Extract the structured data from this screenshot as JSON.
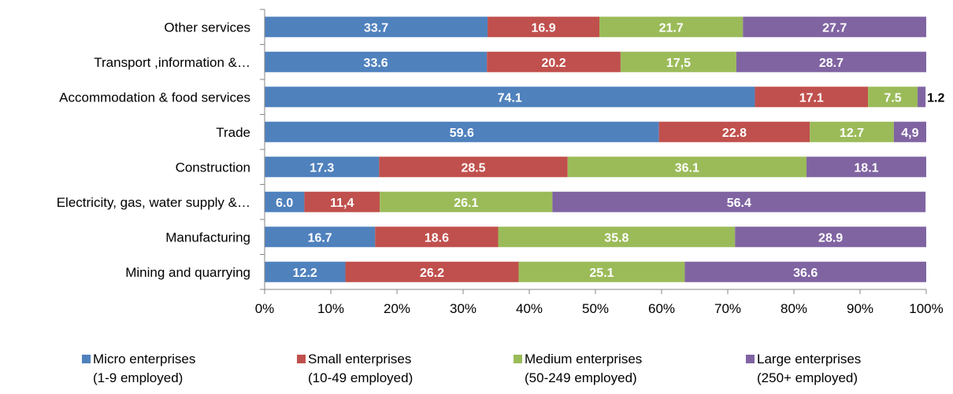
{
  "chart_data": {
    "type": "bar",
    "orientation": "horizontal",
    "stacked": "percent",
    "categories": [
      "Other services",
      "Transport ,information &…",
      "Accommodation & food services",
      "Trade",
      "Construction",
      "Electricity, gas, water supply &…",
      "Manufacturing",
      "Mining and quarrying"
    ],
    "series": [
      {
        "name": "Micro enterprises (1-9 employed)",
        "legend_lines": [
          "Micro enterprises",
          "(1-9 employed)"
        ],
        "color": "#4f81bd",
        "values": [
          33.7,
          33.6,
          74.1,
          59.6,
          17.3,
          6.0,
          16.7,
          12.2
        ],
        "labels": [
          "33.7",
          "33.6",
          "74.1",
          "59.6",
          "17.3",
          "6.0",
          "16.7",
          "12.2"
        ]
      },
      {
        "name": "Small enterprises (10-49 employed)",
        "legend_lines": [
          "Small enterprises",
          "(10-49 employed)"
        ],
        "color": "#c0504d",
        "values": [
          16.9,
          20.2,
          17.1,
          22.8,
          28.5,
          11.4,
          18.6,
          26.2
        ],
        "labels": [
          "16.9",
          "20.2",
          "17.1",
          "22.8",
          "28.5",
          "11,4",
          "18.6",
          "26.2"
        ]
      },
      {
        "name": "Medium enterprises (50-249 employed)",
        "legend_lines": [
          "Medium enterprises",
          "(50-249 employed)"
        ],
        "color": "#9bbb59",
        "values": [
          21.7,
          17.5,
          7.5,
          12.7,
          36.1,
          26.1,
          35.8,
          25.1
        ],
        "labels": [
          "21.7",
          "17,5",
          "7.5",
          "12.7",
          "36.1",
          "26.1",
          "35.8",
          "25.1"
        ]
      },
      {
        "name": "Large enterprises (250+ employed)",
        "legend_lines": [
          "Large enterprises",
          "(250+ employed)"
        ],
        "color": "#8064a2",
        "values": [
          27.7,
          28.7,
          1.2,
          4.9,
          18.1,
          56.4,
          28.9,
          36.6
        ],
        "labels": [
          "27.7",
          "28.7",
          "1.2",
          "4,9",
          "18.1",
          "56.4",
          "28.9",
          "36.6"
        ]
      }
    ],
    "x_ticks": [
      "0%",
      "10%",
      "20%",
      "30%",
      "40%",
      "50%",
      "60%",
      "70%",
      "80%",
      "90%",
      "100%"
    ],
    "xlim": [
      0,
      100
    ],
    "grid": false,
    "legend_position": "bottom",
    "title": "",
    "xlabel": "",
    "ylabel": ""
  }
}
